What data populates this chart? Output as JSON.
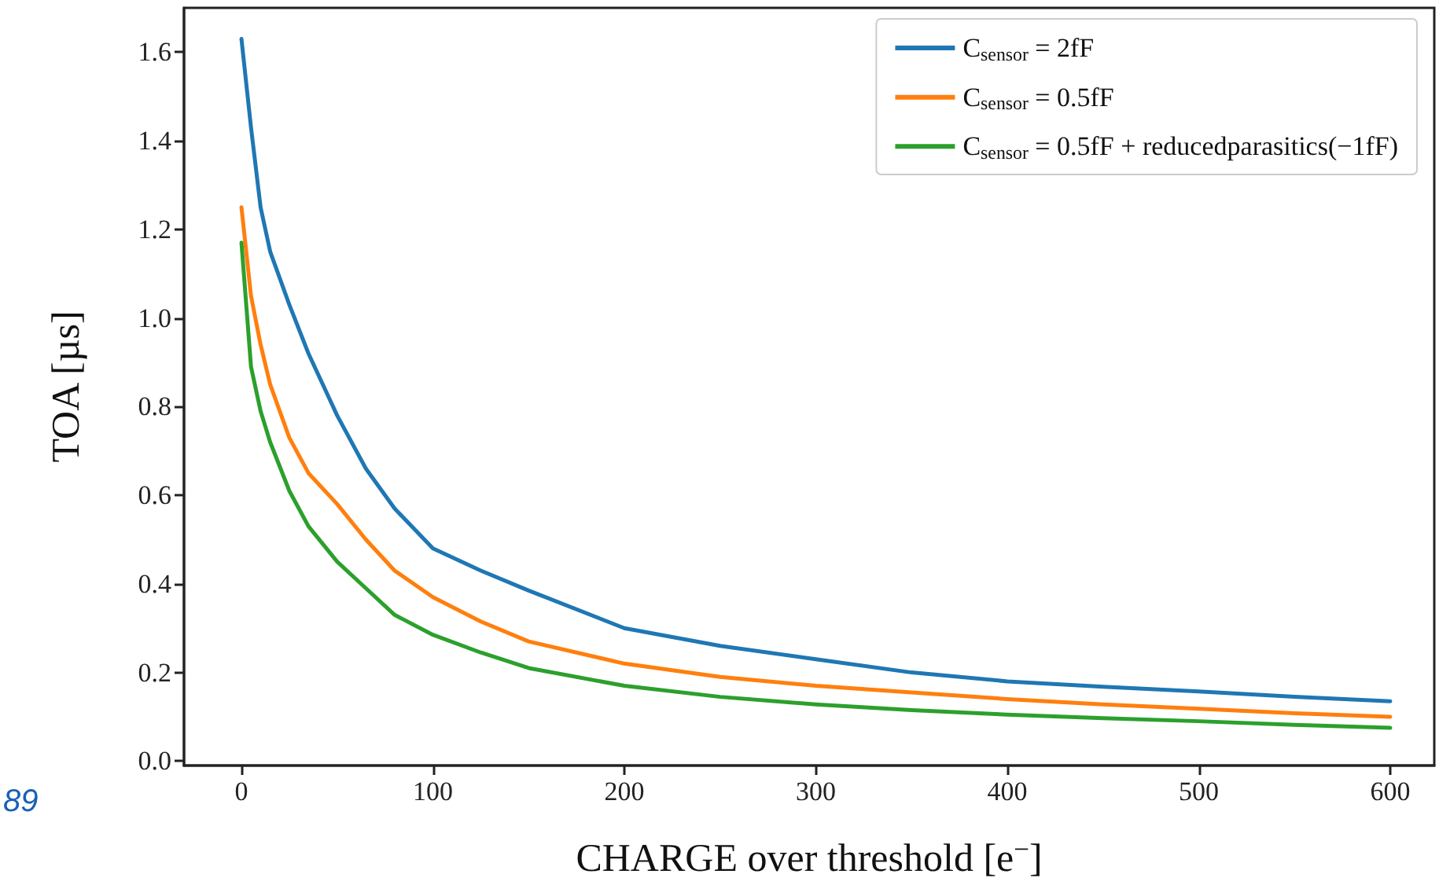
{
  "chart_data": {
    "type": "line",
    "xlabel": "CHARGE over threshold [e$^{−}$]",
    "ylabel": "TOA [µs]",
    "xlim": [
      -30,
      623
    ],
    "xticks": [
      0,
      100,
      200,
      300,
      400,
      500,
      600
    ],
    "ylim": [
      -0.01,
      1.7
    ],
    "yticks": [
      {
        "value": 0,
        "label": "0.0"
      },
      0.2,
      0.4,
      0.6,
      0.8,
      {
        "value": 1,
        "label": "1.0"
      },
      1.2,
      1.4,
      1.6
    ],
    "grid": false,
    "legend": "top right",
    "marker": "none",
    "line_style": "solid",
    "annotations": [
      "89"
    ],
    "x": [
      0,
      5,
      10,
      15,
      25,
      35,
      50,
      65,
      80,
      100,
      125,
      150,
      200,
      250,
      300,
      350,
      400,
      450,
      500,
      550,
      600
    ],
    "series": [
      {
        "name": "C$_{sensor}$ = 2fF",
        "color": "#1f77b4",
        "values": [
          1.63,
          1.43,
          1.25,
          1.15,
          1.03,
          0.92,
          0.78,
          0.66,
          0.57,
          0.48,
          0.43,
          0.385,
          0.3,
          0.26,
          0.23,
          0.2,
          0.18,
          0.168,
          0.157,
          0.145,
          0.135
        ]
      },
      {
        "name": "C$_{sensor}$ = 0.5fF",
        "color": "#ff7f0e",
        "values": [
          1.25,
          1.05,
          0.94,
          0.85,
          0.73,
          0.65,
          0.58,
          0.5,
          0.43,
          0.37,
          0.315,
          0.27,
          0.22,
          0.19,
          0.17,
          0.155,
          0.14,
          0.128,
          0.118,
          0.108,
          0.1
        ]
      },
      {
        "name": "C$_{sensor}$ = 0.5fF + reducedparasitics(−1fF)",
        "color": "#2ca02c",
        "values": [
          1.17,
          0.89,
          0.79,
          0.72,
          0.61,
          0.53,
          0.45,
          0.39,
          0.33,
          0.285,
          0.245,
          0.21,
          0.17,
          0.145,
          0.128,
          0.115,
          0.105,
          0.097,
          0.09,
          0.082,
          0.075
        ]
      }
    ]
  }
}
